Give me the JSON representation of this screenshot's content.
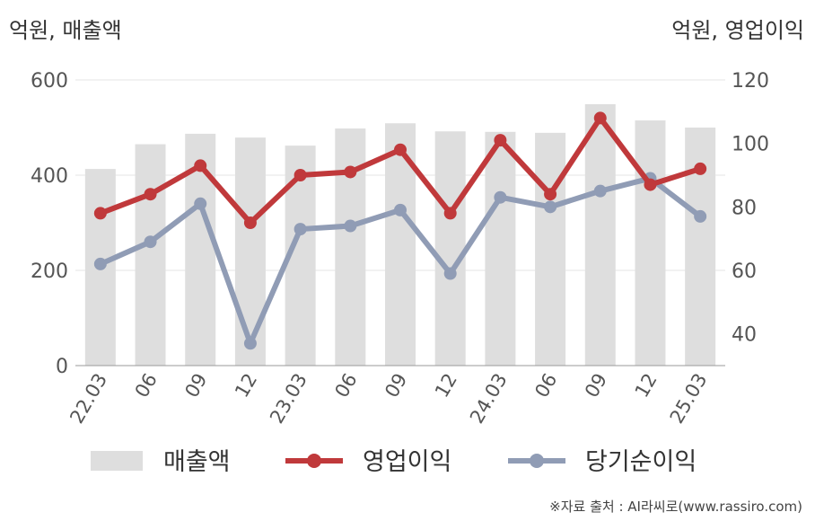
{
  "units": {
    "left": "억원, 매출액",
    "right": "억원, 영업이익"
  },
  "source": "※자료 출처 : AI라씨로(www.rassiro.com)",
  "colors": {
    "bar": "#dedede",
    "operating_profit": "#c0393b",
    "net_income": "#909cb5",
    "grid": "#e6e6e6",
    "axis": "#999999"
  },
  "chart_data": {
    "type": "bar",
    "title": "",
    "categories": [
      "22.03",
      "06",
      "09",
      "12",
      "23.03",
      "06",
      "09",
      "12",
      "24.03",
      "06",
      "09",
      "12",
      "25.03"
    ],
    "ylim_left": [
      0,
      600
    ],
    "yticks_left": [
      0,
      200,
      400,
      600
    ],
    "ylim_right": [
      30,
      120
    ],
    "yticks_right": [
      40,
      60,
      80,
      100,
      120
    ],
    "grid": true,
    "legend_position": "bottom",
    "series": [
      {
        "name": "매출액",
        "type": "bar",
        "axis": "left",
        "values": [
          413,
          465,
          487,
          479,
          462,
          498,
          509,
          492,
          491,
          489,
          549,
          515,
          500
        ]
      },
      {
        "name": "영업이익",
        "type": "line",
        "axis": "right",
        "values": [
          78,
          84,
          93,
          75,
          90,
          91,
          98,
          78,
          101,
          84,
          108,
          87,
          92
        ]
      },
      {
        "name": "당기순이익",
        "type": "line",
        "axis": "right",
        "values": [
          62,
          69,
          81,
          37,
          73,
          74,
          79,
          59,
          83,
          80,
          85,
          89,
          77
        ]
      }
    ]
  }
}
